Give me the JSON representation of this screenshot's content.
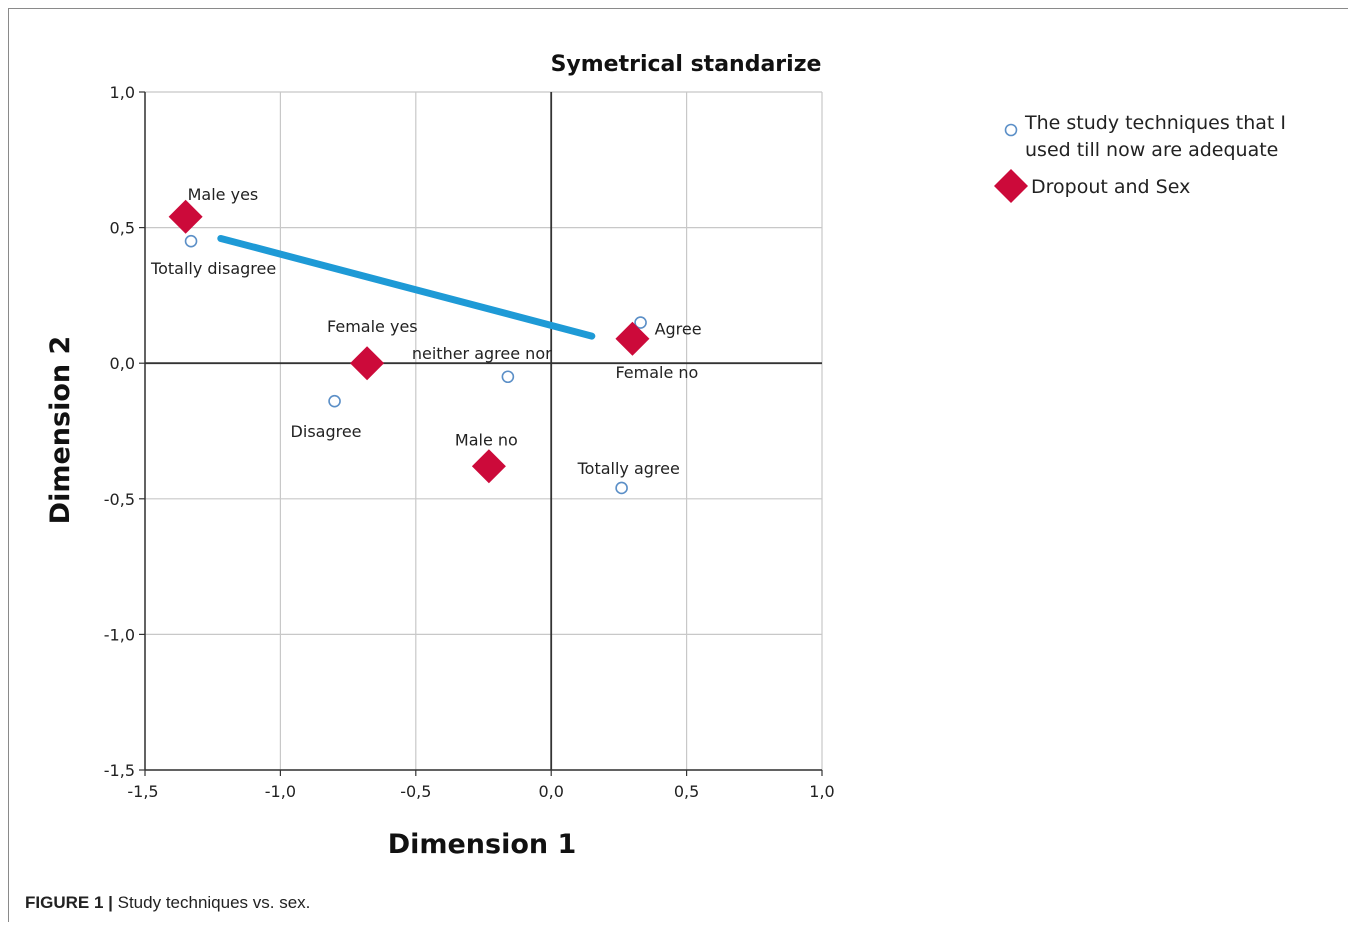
{
  "caption": {
    "label": "FIGURE 1 |",
    "text": "Study techniques vs. sex."
  },
  "chart_data": {
    "type": "scatter",
    "title": "Symetrical standarize",
    "xlabel": "Dimension 1",
    "ylabel": "Dimension 2",
    "xlim": [
      -1.5,
      1.0
    ],
    "ylim": [
      -1.5,
      1.0
    ],
    "xticks": [
      -1.5,
      -1.0,
      -0.5,
      0.0,
      0.5,
      1.0
    ],
    "yticks": [
      -1.5,
      -1.0,
      -0.5,
      0.0,
      0.5,
      1.0
    ],
    "xtick_labels": [
      "-1,5",
      "-1,0",
      "-0,5",
      "0,0",
      "0,5",
      "1,0"
    ],
    "ytick_labels": [
      "-1,5",
      "-1,0",
      "-0,5",
      "0,0",
      "0,5",
      "1,0"
    ],
    "grid": true,
    "legend_position": "right",
    "series": [
      {
        "name": "The study techniques that I used till now are adequate",
        "legend_lines": [
          "The study techniques that I",
          "used till now are adequate"
        ],
        "marker": "circle",
        "color": "#5b8fc7",
        "points": [
          {
            "label": "Totally disagree",
            "x": -1.33,
            "y": 0.45
          },
          {
            "label": "Disagree",
            "x": -0.8,
            "y": -0.14
          },
          {
            "label": "neither agree nor",
            "x": -0.16,
            "y": -0.05
          },
          {
            "label": "Agree",
            "x": 0.33,
            "y": 0.15
          },
          {
            "label": "Totally agree",
            "x": 0.26,
            "y": -0.46
          }
        ]
      },
      {
        "name": "Dropout and Sex",
        "marker": "diamond",
        "color": "#cc0a3a",
        "points": [
          {
            "label": "Male yes",
            "x": -1.35,
            "y": 0.54
          },
          {
            "label": "Female yes",
            "x": -0.68,
            "y": 0.0
          },
          {
            "label": "Male no",
            "x": -0.23,
            "y": -0.38
          },
          {
            "label": "Female no",
            "x": 0.3,
            "y": 0.09
          }
        ]
      }
    ],
    "annotation_line": {
      "color": "#1e9ad6",
      "from": [
        -1.22,
        0.46
      ],
      "to": [
        0.15,
        0.1
      ]
    }
  }
}
